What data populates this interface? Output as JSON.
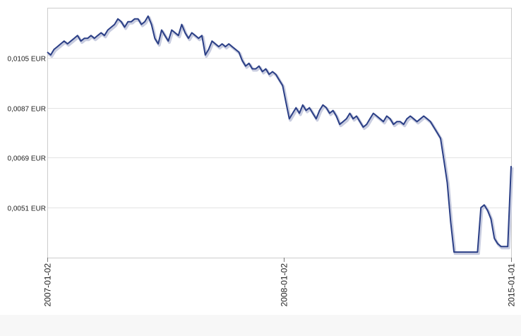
{
  "chart_data": {
    "type": "line",
    "title": "",
    "xlabel": "",
    "ylabel": "",
    "y_tick_labels": [
      "0,0105 EUR",
      "0,0087 EUR",
      "0,0069 EUR",
      "0,0051 EUR"
    ],
    "y_tick_values": [
      0.0105,
      0.0087,
      0.0069,
      0.0051
    ],
    "ylim": [
      0.0033,
      0.0123
    ],
    "x_tick_labels": [
      "2007-01-02",
      "2008-01-02",
      "2015-01-01"
    ],
    "grid": true,
    "legend": "none",
    "colors": {
      "line": "#2b3f86",
      "shadow": "#c9cde0",
      "grid": "#e3e3e3",
      "axis": "#777777"
    },
    "series": [
      {
        "values": [
          0.0107,
          0.0106,
          0.0108,
          0.0109,
          0.011,
          0.0111,
          0.011,
          0.0111,
          0.0112,
          0.0113,
          0.0111,
          0.0112,
          0.0112,
          0.0113,
          0.0112,
          0.0113,
          0.0114,
          0.0113,
          0.0115,
          0.0116,
          0.0117,
          0.0119,
          0.0118,
          0.0116,
          0.0118,
          0.0118,
          0.0119,
          0.0119,
          0.0117,
          0.0118,
          0.012,
          0.0117,
          0.0112,
          0.011,
          0.0115,
          0.0113,
          0.0111,
          0.0115,
          0.0114,
          0.0113,
          0.0117,
          0.0114,
          0.0112,
          0.0114,
          0.0113,
          0.0112,
          0.0113,
          0.0106,
          0.0108,
          0.0111,
          0.011,
          0.0109,
          0.011,
          0.0109,
          0.011,
          0.0109,
          0.0108,
          0.0107,
          0.0104,
          0.0102,
          0.0103,
          0.0101,
          0.0101,
          0.0102,
          0.01,
          0.0101,
          0.0099,
          0.01,
          0.0099,
          0.0097,
          0.0095,
          0.0089,
          0.0083,
          0.0085,
          0.0087,
          0.0085,
          0.0088,
          0.0086,
          0.0087,
          0.0085,
          0.0083,
          0.0086,
          0.0088,
          0.0087,
          0.0085,
          0.0086,
          0.0084,
          0.0081,
          0.0082,
          0.0083,
          0.0085,
          0.0083,
          0.0084,
          0.0082,
          0.008,
          0.0081,
          0.0083,
          0.0085,
          0.0084,
          0.0083,
          0.0082,
          0.0084,
          0.0083,
          0.0081,
          0.0082,
          0.0082,
          0.0081,
          0.0083,
          0.0084,
          0.0083,
          0.0082,
          0.0083,
          0.0084,
          0.0083,
          0.0082,
          0.008,
          0.0078,
          0.0076,
          0.0068,
          0.006,
          0.0046,
          0.0035,
          0.0035,
          0.0035,
          0.0035,
          0.0035,
          0.0035,
          0.0035,
          0.0035,
          0.0051,
          0.0052,
          0.005,
          0.0047,
          0.004,
          0.0038,
          0.0037,
          0.0037,
          0.0037,
          0.0066
        ]
      }
    ]
  }
}
